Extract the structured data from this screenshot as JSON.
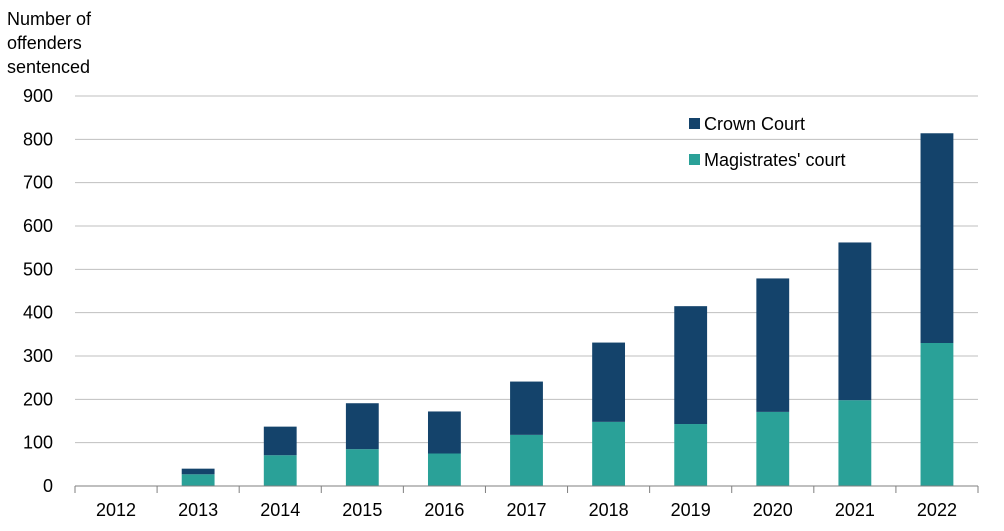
{
  "chart_data": {
    "type": "bar",
    "stacked": true,
    "title": "",
    "ylabel_lines": [
      "Number of",
      "offenders",
      "sentenced"
    ],
    "xlabel": "",
    "ylim": [
      0,
      900
    ],
    "yticks": [
      0,
      100,
      200,
      300,
      400,
      500,
      600,
      700,
      800,
      900
    ],
    "grid": true,
    "legend_position": "top-right",
    "categories": [
      "2012",
      "2013",
      "2014",
      "2015",
      "2016",
      "2017",
      "2018",
      "2019",
      "2020",
      "2021",
      "2022"
    ],
    "series": [
      {
        "name": "Magistrates' court",
        "color": "#2aa198",
        "values": [
          0,
          27,
          71,
          85,
          75,
          118,
          148,
          143,
          171,
          198,
          330
        ]
      },
      {
        "name": "Crown Court",
        "color": "#14436b",
        "values": [
          0,
          13,
          66,
          106,
          97,
          123,
          183,
          272,
          308,
          364,
          484
        ]
      }
    ],
    "legend_order": [
      "Crown Court",
      "Magistrates' court"
    ]
  }
}
